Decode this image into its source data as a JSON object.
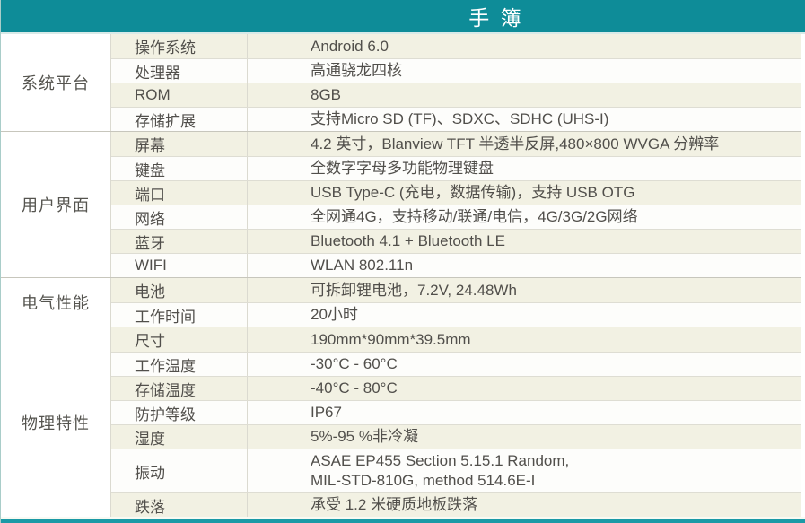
{
  "title": "手 簿",
  "colors": {
    "header_teal": "#0e8c98",
    "footer_teal": "#1b9aa6",
    "row_cream": "#f2f1e3",
    "row_white": "#fdfdfb",
    "grid_line": "#deddd3",
    "text": "#514f4b"
  },
  "sections": [
    {
      "category": "系统平台",
      "rows": [
        {
          "label": "操作系统",
          "value": "Android 6.0"
        },
        {
          "label": "处理器",
          "value": "高通骁龙四核"
        },
        {
          "label": "ROM",
          "value": "8GB"
        },
        {
          "label": "存储扩展",
          "value": "支持Micro SD (TF)、SDXC、SDHC (UHS-I)"
        }
      ]
    },
    {
      "category": "用户界面",
      "rows": [
        {
          "label": "屏幕",
          "value": "4.2 英寸，Blanview TFT 半透半反屏,480×800 WVGA 分辨率"
        },
        {
          "label": "键盘",
          "value": "全数字字母多功能物理键盘"
        },
        {
          "label": "端口",
          "value": "USB Type-C (充电，数据传输)，支持 USB OTG"
        },
        {
          "label": "网络",
          "value": "全网通4G，支持移动/联通/电信，4G/3G/2G网络"
        },
        {
          "label": "蓝牙",
          "value": "Bluetooth 4.1 + Bluetooth LE"
        },
        {
          "label": "WIFI",
          "value": "WLAN 802.11n"
        }
      ]
    },
    {
      "category": "电气性能",
      "rows": [
        {
          "label": "电池",
          "value": "可拆卸锂电池，7.2V, 24.48Wh"
        },
        {
          "label": "工作时间",
          "value": "20小时"
        }
      ]
    },
    {
      "category": "物理特性",
      "rows": [
        {
          "label": "尺寸",
          "value": "190mm*90mm*39.5mm"
        },
        {
          "label": "工作温度",
          "value": "-30°C - 60°C"
        },
        {
          "label": "存储温度",
          "value": "-40°C - 80°C"
        },
        {
          "label": "防护等级",
          "value": "IP67"
        },
        {
          "label": "湿度",
          "value": "5%-95 %非冷凝"
        },
        {
          "label": "振动",
          "value": "ASAE EP455 Section 5.15.1 Random,\nMIL-STD-810G, method 514.6E-I"
        },
        {
          "label": "跌落",
          "value": "承受 1.2 米硬质地板跌落"
        }
      ]
    }
  ]
}
